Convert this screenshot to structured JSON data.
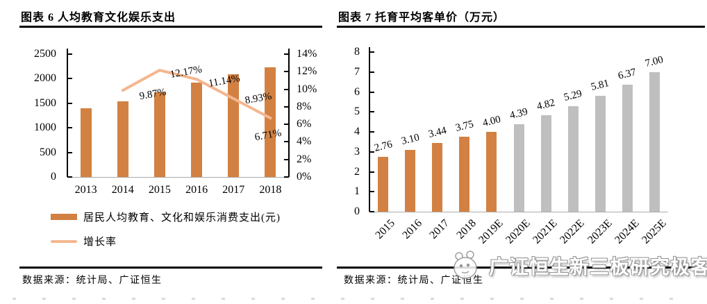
{
  "colors": {
    "bar_orange": "#D28142",
    "line_salmon": "#F4B68F",
    "bar_gray": "#BFBFBF",
    "axis": "#000000",
    "baseline": "#ABABAB"
  },
  "watermark": {
    "text": "广证恒生新三板研究极客",
    "logo": "panda-face-icon"
  },
  "chart_data": [
    {
      "id": "figure-6",
      "type": "bar",
      "subtype": "bar-line-combo",
      "title": "图表 6 人均教育文化娱乐支出",
      "source": "数据来源：统计局、广证恒生",
      "categories": [
        "2013",
        "2014",
        "2015",
        "2016",
        "2017",
        "2018"
      ],
      "series": [
        {
          "name": "居民人均教育、文化和娱乐消费支出(元)",
          "type": "bar",
          "axis": "left",
          "values": [
            1398,
            1536,
            1723,
            1915,
            2086,
            2226
          ]
        },
        {
          "name": "增长率",
          "type": "line",
          "axis": "right",
          "values": [
            null,
            9.87,
            12.17,
            11.14,
            8.93,
            6.71
          ],
          "point_labels": [
            null,
            "9.87%",
            "12.17%",
            "11.14%",
            "8.93%",
            "6.71%"
          ]
        }
      ],
      "left_axis": {
        "min": 0,
        "max": 2500,
        "tick_labels": [
          "0",
          "500",
          "1000",
          "1500",
          "2000",
          "2500"
        ]
      },
      "right_axis": {
        "min": 0,
        "max": 14,
        "tick_labels": [
          "0%",
          "2%",
          "4%",
          "6%",
          "8%",
          "10%",
          "12%",
          "14%"
        ]
      },
      "legend": [
        {
          "label": "居民人均教育、文化和娱乐消费支出(元)",
          "swatch": "bar"
        },
        {
          "label": "增长率",
          "swatch": "line"
        }
      ],
      "grid": "off",
      "legend_position": "bottom-left"
    },
    {
      "id": "figure-7",
      "type": "bar",
      "title": "图表 7 托育平均客单价（万元）",
      "source": "数据来源：统计局、广证恒生",
      "categories": [
        "2015",
        "2016",
        "2017",
        "2018",
        "2019E",
        "2020E",
        "2021E",
        "2022E",
        "2023E",
        "2024E",
        "2025E"
      ],
      "values": [
        2.76,
        3.1,
        3.44,
        3.75,
        4.0,
        4.39,
        4.82,
        5.29,
        5.81,
        6.37,
        7.0
      ],
      "bar_labels": [
        "2.76",
        "3.10",
        "3.44",
        "3.75",
        "4.00",
        "4.39",
        "4.82",
        "5.29",
        "5.81",
        "6.37",
        "7.00"
      ],
      "actual_bar_count": 5,
      "forecast_note": "bars for 2020E-2025E shown in gray (forecast), 2015-2019E in orange",
      "y_axis": {
        "min": 0,
        "max": 8,
        "tick_labels": [
          "0",
          "1",
          "2",
          "3",
          "4",
          "5",
          "6",
          "7",
          "8"
        ]
      },
      "grid": "off"
    }
  ]
}
